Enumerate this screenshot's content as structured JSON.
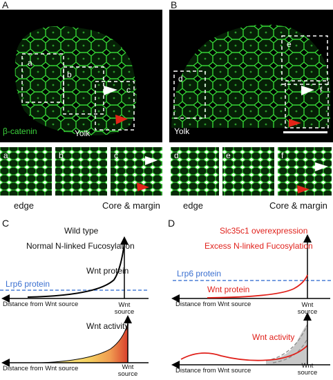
{
  "panel_a": {
    "label": "A",
    "boxes": [
      "a",
      "b",
      "c"
    ],
    "stain": "β-catenin",
    "yolk": "Yolk",
    "insets": [
      "a",
      "b",
      "c"
    ],
    "captions": [
      "edge",
      "Core & margin"
    ]
  },
  "panel_b": {
    "label": "B",
    "boxes": [
      "d",
      "e",
      "f"
    ],
    "yolk": "Yolk",
    "insets": [
      "d",
      "e",
      "f"
    ],
    "captions": [
      "edge",
      "Core & margin"
    ]
  },
  "panel_c": {
    "label": "C",
    "title": "Wild type",
    "subtitle": "Normal N-linked Fucosylation",
    "top": {
      "curve": "Wnt protein",
      "receptor": "Lrp6 protein",
      "x_axis": "Distance from Wnt source",
      "source": "Wnt source"
    },
    "bottom": {
      "curve": "Wnt activity",
      "x_axis": "Distance from Wnt source",
      "source": "Wnt source"
    }
  },
  "panel_d": {
    "label": "D",
    "title": "Slc35c1 overexpression",
    "subtitle": "Excess N-linked Fucosylation",
    "top": {
      "receptor": "Lrp6 protein",
      "curve": "Wnt protein",
      "x_axis": "Distance from Wnt source",
      "source": "Wnt source"
    },
    "bottom": {
      "curve": "Wnt activity",
      "x_axis": "Distance from Wnt source",
      "source": "Wnt source"
    }
  }
}
